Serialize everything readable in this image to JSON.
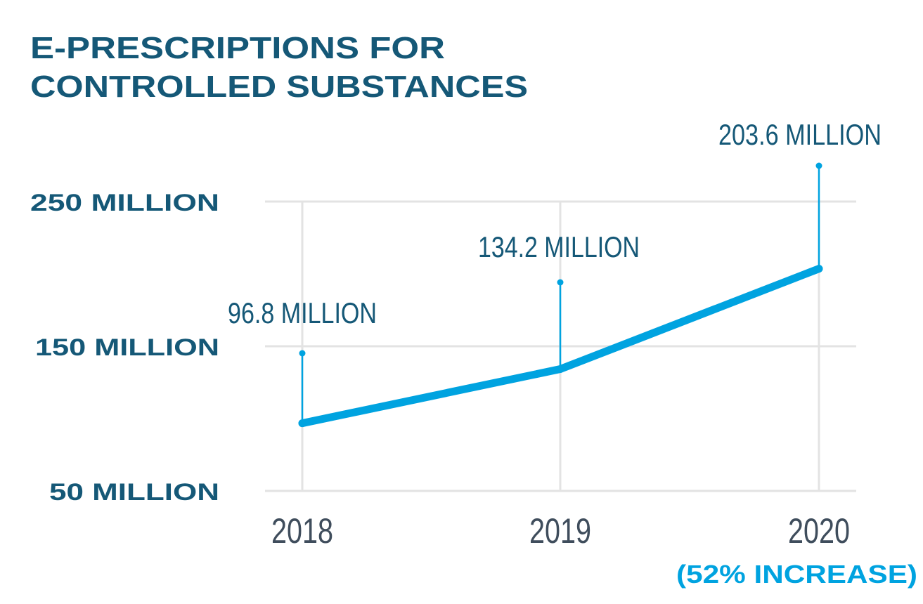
{
  "chart_data": {
    "type": "line",
    "title_lines": [
      "E-PRESCRIPTIONS FOR",
      "CONTROLLED SUBSTANCES"
    ],
    "categories": [
      "2018",
      "2019",
      "2020"
    ],
    "values": [
      96.8,
      134.2,
      203.6
    ],
    "unit": "million",
    "data_labels": [
      "96.8 MILLION",
      "134.2 MILLION",
      "203.6 MILLION"
    ],
    "y_ticks": [
      50,
      150,
      250
    ],
    "y_tick_labels": [
      "50 MILLION",
      "150 MILLION",
      "250 MILLION"
    ],
    "ylim": [
      50,
      250
    ],
    "annotation": "(52% INCREASE)",
    "grid": true,
    "xlabel": "",
    "ylabel": "",
    "colors": {
      "title": "#155877",
      "line": "#00a3e0",
      "xtick": "#3f4d5c",
      "grid": "#e3e3e3",
      "annotation": "#00a3e0"
    }
  }
}
